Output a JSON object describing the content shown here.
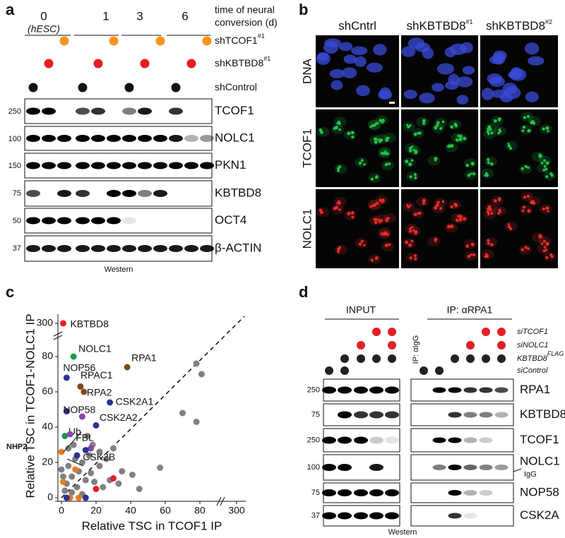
{
  "panel_a": {
    "letter": "a",
    "time_points": [
      "0",
      "1",
      "3",
      "6"
    ],
    "hesc": "(hESC)",
    "time_label": [
      "time of neural",
      "conversion (d)"
    ],
    "conditions": [
      {
        "name": "shTCOF1",
        "sup": "#1"
      },
      {
        "name": "shKBTBD8",
        "sup": "#1"
      },
      {
        "name": "shControl"
      }
    ],
    "blots": [
      {
        "mw": "250",
        "protein": "TCOF1"
      },
      {
        "mw": "100",
        "protein": "NOLC1"
      },
      {
        "mw": "150",
        "protein": "PKN1"
      },
      {
        "mw": "75",
        "protein": "KBTBD8"
      },
      {
        "mw": "50",
        "protein": "OCT4"
      },
      {
        "mw": "37",
        "protein": "β-ACTIN"
      }
    ],
    "footer": "Western"
  },
  "panel_b": {
    "letter": "b",
    "columns": [
      {
        "name": "shCntrl"
      },
      {
        "name": "shKBTBD8",
        "sup": "#1"
      },
      {
        "name": "shKBTBD8",
        "sup": "#2"
      }
    ],
    "rows": [
      "DNA",
      "TCOF1",
      "NOLC1"
    ]
  },
  "chart_data": {
    "type": "scatter",
    "letter": "c",
    "xlabel": "Relative TSC in TCOF1 IP",
    "ylabel": "Relative TSC in TCOF1-NOLC1 IP",
    "xlim": [
      0,
      300
    ],
    "ylim": [
      0,
      300
    ],
    "xticks": [
      0,
      20,
      40,
      60,
      80,
      300
    ],
    "yticks": [
      0,
      20,
      40,
      60,
      80,
      300
    ],
    "points": [
      {
        "label": "KBTBD8",
        "color": "#e31e24",
        "x": 1,
        "y": 300
      },
      {
        "label": "NOLC1",
        "color": "#1a9850",
        "x": 7,
        "y": 80
      },
      {
        "label": "NOP56",
        "color": "#2e3192",
        "x": 3,
        "y": 68
      },
      {
        "label": "RPA1",
        "color": "#7b4a1e",
        "x": 38,
        "y": 74
      },
      {
        "label": "RPAC1",
        "color": "#7b4a1e",
        "x": 11,
        "y": 63
      },
      {
        "label": "RPA2",
        "color": "#7b4a1e",
        "x": 13,
        "y": 60
      },
      {
        "label": "CSK2A1",
        "color": "#2e3192",
        "x": 28,
        "y": 54
      },
      {
        "label": "NOP58",
        "color": "#2e3192",
        "x": 3,
        "y": 49
      },
      {
        "label": "CSK2A2",
        "color": "#2e3192",
        "x": 20,
        "y": 41
      },
      {
        "label": "Ub",
        "color": "#1a9850",
        "x": 2,
        "y": 35
      },
      {
        "label": "FBL",
        "color": "#8e44ad",
        "x": 5,
        "y": 36
      },
      {
        "label": "NHP2",
        "color": "#e67e22",
        "x": 0,
        "y": 26
      },
      {
        "label": "CSK2B",
        "color": "#2e3192",
        "x": 14,
        "y": 27
      }
    ],
    "other_points": [
      {
        "color": "#808080",
        "x": 78,
        "y": 76
      },
      {
        "color": "#808080",
        "x": 81,
        "y": 70
      },
      {
        "color": "#808080",
        "x": 70,
        "y": 48
      },
      {
        "color": "#808080",
        "x": 78,
        "y": 43
      },
      {
        "color": "#808080",
        "x": 57,
        "y": 17
      },
      {
        "color": "#808080",
        "x": 45,
        "y": 5
      },
      {
        "color": "#808080",
        "x": 41,
        "y": 13
      },
      {
        "color": "#808080",
        "x": 35,
        "y": 15
      },
      {
        "color": "#808080",
        "x": 30,
        "y": 28
      },
      {
        "color": "#808080",
        "x": 26,
        "y": 22
      },
      {
        "color": "#808080",
        "x": 22,
        "y": 18
      },
      {
        "color": "#808080",
        "x": 18,
        "y": 30
      },
      {
        "color": "#808080",
        "x": 16,
        "y": 24
      },
      {
        "color": "#808080",
        "x": 12,
        "y": 20
      },
      {
        "color": "#808080",
        "x": 10,
        "y": 15
      },
      {
        "color": "#808080",
        "x": 8,
        "y": 22
      },
      {
        "color": "#808080",
        "x": 6,
        "y": 12
      },
      {
        "color": "#808080",
        "x": 4,
        "y": 18
      },
      {
        "color": "#808080",
        "x": 3,
        "y": 8
      },
      {
        "color": "#808080",
        "x": 2,
        "y": 4
      },
      {
        "color": "#808080",
        "x": 1,
        "y": 12
      },
      {
        "color": "#808080",
        "x": 9,
        "y": 6
      },
      {
        "color": "#808080",
        "x": 14,
        "y": 10
      },
      {
        "color": "#808080",
        "x": 19,
        "y": 9
      },
      {
        "color": "#808080",
        "x": 24,
        "y": 6
      },
      {
        "color": "#808080",
        "x": 28,
        "y": 10
      },
      {
        "color": "#808080",
        "x": 33,
        "y": 8
      },
      {
        "color": "#808080",
        "x": 6,
        "y": 3
      },
      {
        "color": "#808080",
        "x": 12,
        "y": 2
      },
      {
        "color": "#808080",
        "x": 17,
        "y": 14
      },
      {
        "color": "#808080",
        "x": 4,
        "y": 28
      },
      {
        "color": "#808080",
        "x": 7,
        "y": 30
      },
      {
        "color": "#808080",
        "x": 0,
        "y": 16
      },
      {
        "color": "#808080",
        "x": 15,
        "y": 35
      },
      {
        "color": "#808080",
        "x": 22,
        "y": 26
      },
      {
        "color": "#e31e24",
        "x": 20,
        "y": 5
      },
      {
        "color": "#e31e24",
        "x": 30,
        "y": 11
      },
      {
        "color": "#e67e22",
        "x": 8,
        "y": 16
      },
      {
        "color": "#e67e22",
        "x": 1,
        "y": 9
      },
      {
        "color": "#e67e22",
        "x": 5,
        "y": 0
      },
      {
        "color": "#e67e22",
        "x": 10,
        "y": 0
      },
      {
        "color": "#2e3192",
        "x": 3,
        "y": 0
      },
      {
        "color": "#2e3192",
        "x": 14,
        "y": 0
      },
      {
        "color": "#2e3192",
        "x": 9,
        "y": 24
      },
      {
        "color": "#8e44ad",
        "x": 17,
        "y": 28
      },
      {
        "color": "#8e44ad",
        "x": 12,
        "y": 46
      }
    ]
  },
  "panel_d": {
    "letter": "d",
    "input": "INPUT",
    "ip": "IP: αRPA1",
    "igg_lane": "IP: αIgG",
    "conditions": [
      {
        "name": "siTCOF1",
        "color": "#e31e24"
      },
      {
        "name": "siNOLC1",
        "color": "#e31e24"
      },
      {
        "name": "KBTBD8",
        "sup": "FLAG",
        "color": "#222222"
      },
      {
        "name": "siControl",
        "color": "#222222"
      }
    ],
    "blots": [
      {
        "mw": "250",
        "protein": "RPA1",
        "color": "#7b4a1e"
      },
      {
        "mw": "75",
        "protein": "KBTBD8",
        "color": "#e31e24"
      },
      {
        "mw": "250",
        "protein": "TCOF1",
        "color": "#1a9850"
      },
      {
        "mw": "100",
        "protein": "NOLC1",
        "color": "#1a9850"
      },
      {
        "mw": "75",
        "protein": "NOP58",
        "color": "#2e3192"
      },
      {
        "mw": "37",
        "protein": "CSK2A",
        "color": "#2e3192"
      }
    ],
    "igg": "IgG",
    "footer": "Western"
  }
}
